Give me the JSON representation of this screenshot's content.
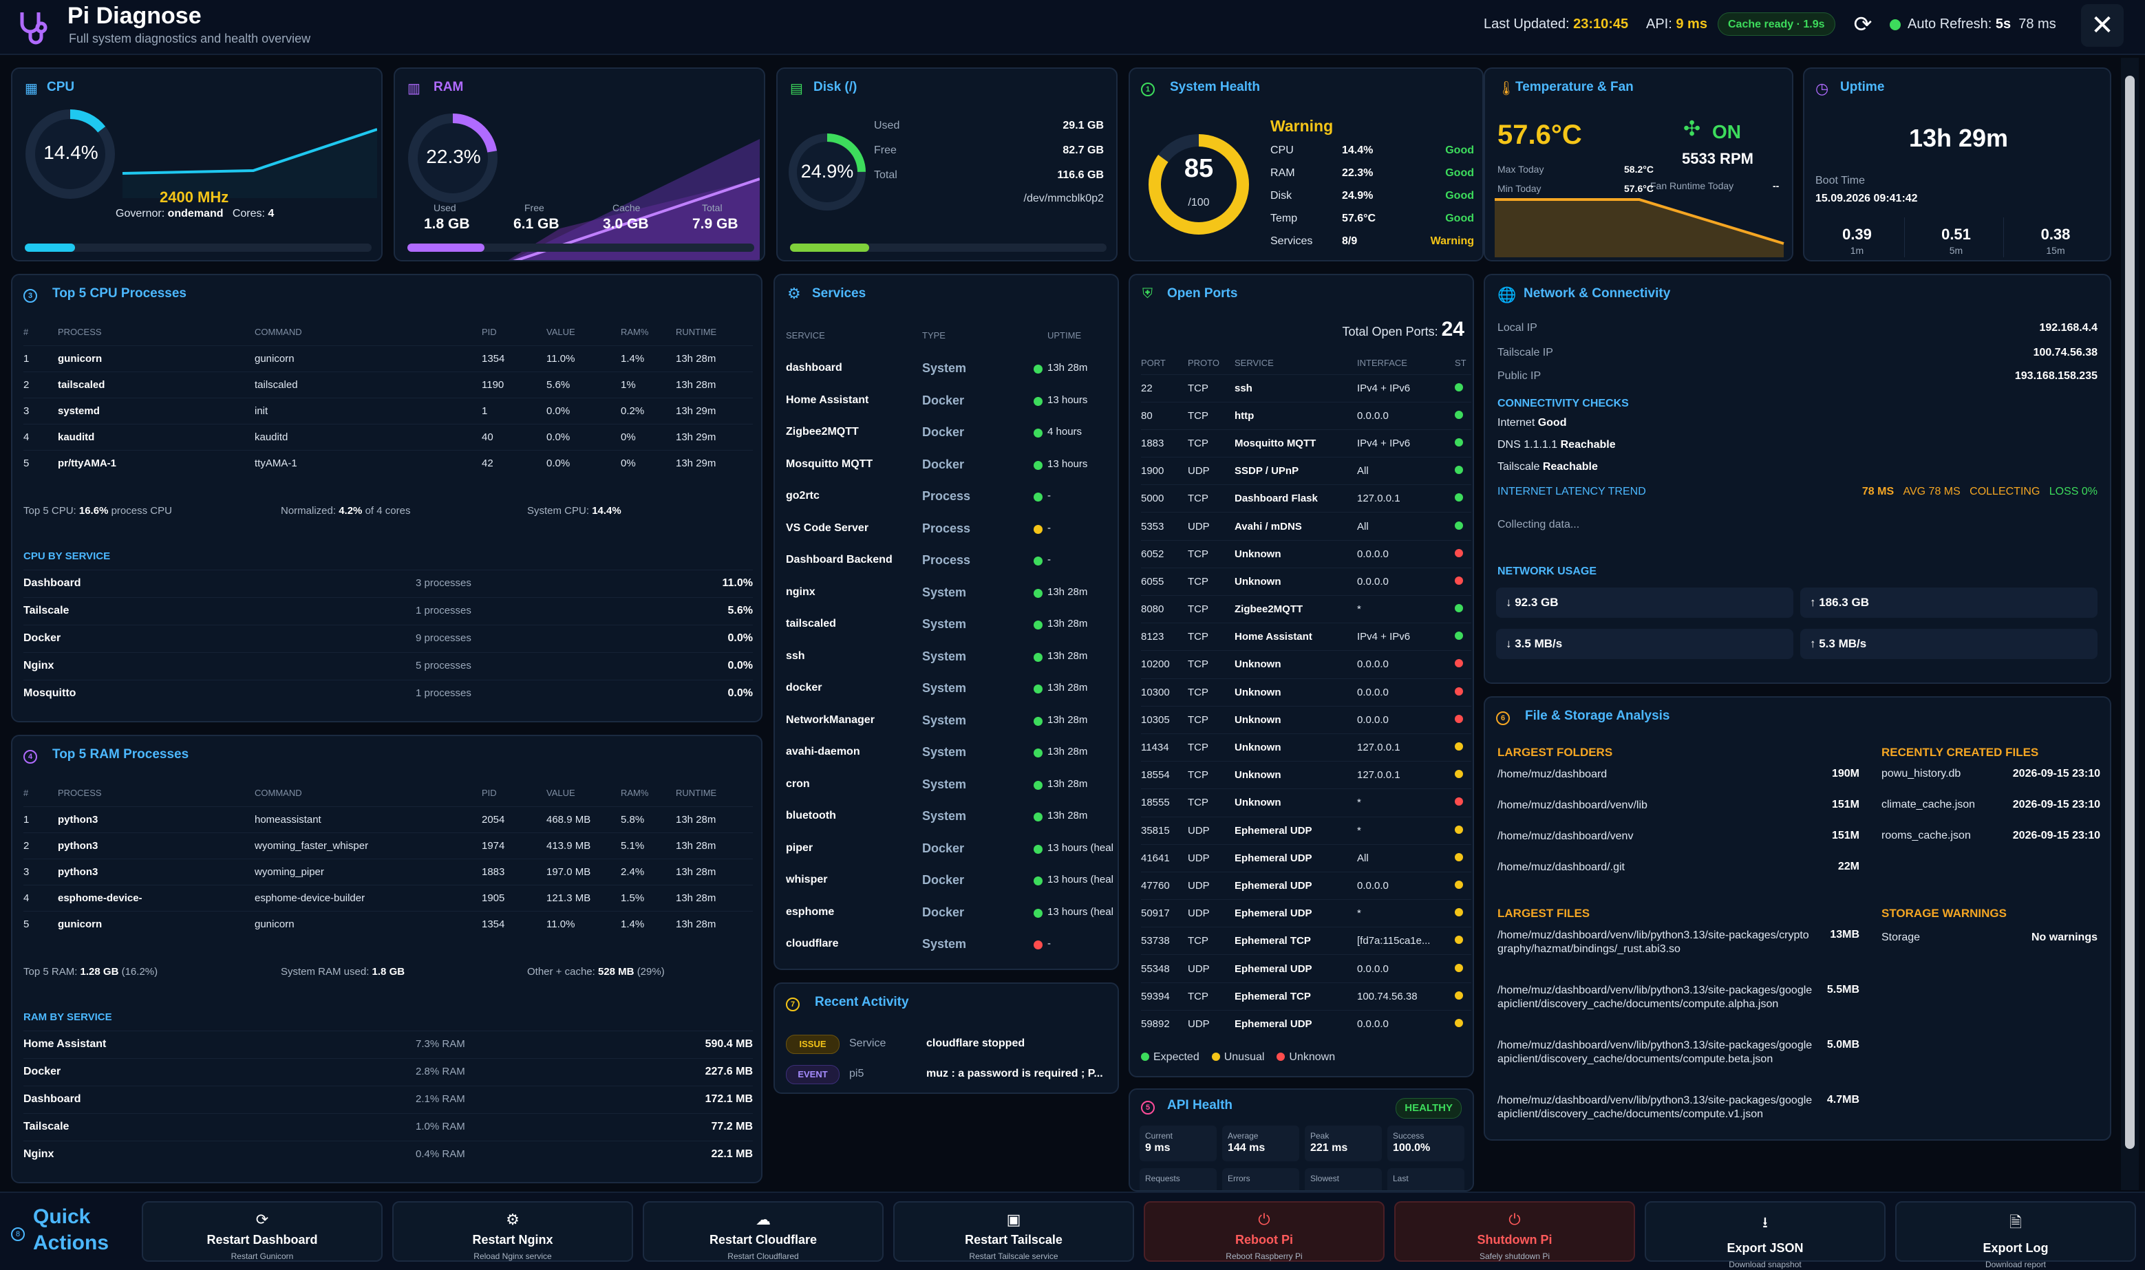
{
  "header": {
    "title": "Pi Diagnose",
    "subtitle": "Full system diagnostics and health overview",
    "last_updated_label": "Last Updated:",
    "last_updated": "23:10:45",
    "api_label": "API:",
    "api": "9 ms",
    "cache": "Cache ready · 1.9s",
    "auto_label": "Auto Refresh:",
    "auto_interval": "5s",
    "auto_ms": "78 ms"
  },
  "cpu": {
    "title": "CPU",
    "percent": "14.4%",
    "freq": "2400 MHz",
    "governor_label": "Governor:",
    "governor": "ondemand",
    "cores_label": "Cores:",
    "cores": "4",
    "usage": 0.144
  },
  "ram": {
    "title": "RAM",
    "percent": "22.3%",
    "used_label": "Used",
    "used": "1.8 GB",
    "free_label": "Free",
    "free": "6.1 GB",
    "cache_label": "Cache",
    "cache": "3.0 GB",
    "total_label": "Total",
    "total": "7.9 GB",
    "usage": 0.223
  },
  "disk": {
    "title": "Disk (/)",
    "percent": "24.9%",
    "used_label": "Used",
    "used": "29.1 GB",
    "free_label": "Free",
    "free": "82.7 GB",
    "total_label": "Total",
    "total": "116.6 GB",
    "device": "/dev/mmcblk0p2",
    "usage": 0.249
  },
  "health": {
    "title": "System Health",
    "score": "85",
    "of": "/100",
    "status": "Warning",
    "score_value": 85,
    "rows": [
      {
        "k": "CPU",
        "v": "14.4%",
        "s": "Good"
      },
      {
        "k": "RAM",
        "v": "22.3%",
        "s": "Good"
      },
      {
        "k": "Disk",
        "v": "24.9%",
        "s": "Good"
      },
      {
        "k": "Temp",
        "v": "57.6°C",
        "s": "Good"
      },
      {
        "k": "Services",
        "v": "8/9",
        "s": "Warning"
      }
    ]
  },
  "temp": {
    "title": "Temperature & Fan",
    "value": "57.6°C",
    "fan_state": "ON",
    "rpm": "5533 RPM",
    "max_label": "Max Today",
    "max": "58.2°C",
    "min_label": "Min Today",
    "min": "57.6°C",
    "runtime_label": "Fan Runtime Today",
    "runtime": "--"
  },
  "uptime": {
    "title": "Uptime",
    "value": "13h 29m",
    "boot_label": "Boot Time",
    "boot": "15.09.2026 09:41:42",
    "loads": [
      {
        "v": "0.39",
        "l": "1m"
      },
      {
        "v": "0.51",
        "l": "5m"
      },
      {
        "v": "0.38",
        "l": "15m"
      }
    ]
  },
  "cpu_proc": {
    "num": "3",
    "title": "Top 5 CPU Processes",
    "headers": [
      "#",
      "PROCESS",
      "COMMAND",
      "PID",
      "VALUE",
      "RAM%",
      "RUNTIME"
    ],
    "rows": [
      [
        "1",
        "gunicorn",
        "gunicorn",
        "1354",
        "11.0%",
        "1.4%",
        "13h 28m"
      ],
      [
        "2",
        "tailscaled",
        "tailscaled",
        "1190",
        "5.6%",
        "1%",
        "13h 28m"
      ],
      [
        "3",
        "systemd",
        "init",
        "1",
        "0.0%",
        "0.2%",
        "13h 29m"
      ],
      [
        "4",
        "kauditd",
        "kauditd",
        "40",
        "0.0%",
        "0%",
        "13h 29m"
      ],
      [
        "5",
        "pr/ttyAMA-1",
        "ttyAMA-1",
        "42",
        "0.0%",
        "0%",
        "13h 29m"
      ]
    ],
    "sum1_label": "Top 5 CPU:",
    "sum1": "16.6%",
    "sum1_suffix": "process CPU",
    "sum2_label": "Normalized:",
    "sum2": "4.2%",
    "sum2_suffix": "of 4 cores",
    "sum3_label": "System CPU:",
    "sum3": "14.4%",
    "by_title": "CPU BY SERVICE",
    "by": [
      [
        "Dashboard",
        "3 processes",
        "11.0%"
      ],
      [
        "Tailscale",
        "1 processes",
        "5.6%"
      ],
      [
        "Docker",
        "9 processes",
        "0.0%"
      ],
      [
        "Nginx",
        "5 processes",
        "0.0%"
      ],
      [
        "Mosquitto",
        "1 processes",
        "0.0%"
      ]
    ]
  },
  "ram_proc": {
    "num": "4",
    "title": "Top 5 RAM Processes",
    "headers": [
      "#",
      "PROCESS",
      "COMMAND",
      "PID",
      "VALUE",
      "RAM%",
      "RUNTIME"
    ],
    "rows": [
      [
        "1",
        "python3",
        "homeassistant",
        "2054",
        "468.9 MB",
        "5.8%",
        "13h 28m"
      ],
      [
        "2",
        "python3",
        "wyoming_faster_whisper",
        "1974",
        "413.9 MB",
        "5.1%",
        "13h 28m"
      ],
      [
        "3",
        "python3",
        "wyoming_piper",
        "1883",
        "197.0 MB",
        "2.4%",
        "13h 28m"
      ],
      [
        "4",
        "esphome-device-",
        "esphome-device-builder",
        "1905",
        "121.3 MB",
        "1.5%",
        "13h 28m"
      ],
      [
        "5",
        "gunicorn",
        "gunicorn",
        "1354",
        "11.0%",
        "1.4%",
        "13h 28m"
      ]
    ],
    "sum1_label": "Top 5 RAM:",
    "sum1": "1.28 GB",
    "sum1_suffix": "(16.2%)",
    "sum2_label": "System RAM used:",
    "sum2": "1.8 GB",
    "sum3_label": "Other + cache:",
    "sum3": "528 MB",
    "sum3_suffix": "(29%)",
    "by_title": "RAM BY SERVICE",
    "by": [
      [
        "Home Assistant",
        "7.3% RAM",
        "590.4 MB"
      ],
      [
        "Docker",
        "2.8% RAM",
        "227.6 MB"
      ],
      [
        "Dashboard",
        "2.1% RAM",
        "172.1 MB"
      ],
      [
        "Tailscale",
        "1.0% RAM",
        "77.2 MB"
      ],
      [
        "Nginx",
        "0.4% RAM",
        "22.1 MB"
      ]
    ]
  },
  "services": {
    "title": "Services",
    "headers": [
      "SERVICE",
      "TYPE",
      "UPTIME"
    ],
    "rows": [
      [
        "dashboard",
        "System",
        "green",
        "13h 28m"
      ],
      [
        "Home Assistant",
        "Docker",
        "green",
        "13 hours"
      ],
      [
        "Zigbee2MQTT",
        "Docker",
        "green",
        "4 hours"
      ],
      [
        "Mosquitto MQTT",
        "Docker",
        "green",
        "13 hours"
      ],
      [
        "go2rtc",
        "Process",
        "green",
        "-"
      ],
      [
        "VS Code Server",
        "Process",
        "yellow",
        "-"
      ],
      [
        "Dashboard Backend",
        "Process",
        "green",
        "-"
      ],
      [
        "nginx",
        "System",
        "green",
        "13h 28m"
      ],
      [
        "tailscaled",
        "System",
        "green",
        "13h 28m"
      ],
      [
        "ssh",
        "System",
        "green",
        "13h 28m"
      ],
      [
        "docker",
        "System",
        "green",
        "13h 28m"
      ],
      [
        "NetworkManager",
        "System",
        "green",
        "13h 28m"
      ],
      [
        "avahi-daemon",
        "System",
        "green",
        "13h 28m"
      ],
      [
        "cron",
        "System",
        "green",
        "13h 28m"
      ],
      [
        "bluetooth",
        "System",
        "green",
        "13h 28m"
      ],
      [
        "piper",
        "Docker",
        "green",
        "13 hours (heal"
      ],
      [
        "whisper",
        "Docker",
        "green",
        "13 hours (heal"
      ],
      [
        "esphome",
        "Docker",
        "green",
        "13 hours (heal"
      ],
      [
        "cloudflare",
        "System",
        "red",
        "-"
      ]
    ]
  },
  "activity": {
    "num": "7",
    "title": "Recent Activity",
    "rows": [
      {
        "tag": "ISSUE",
        "src": "Service",
        "msg": "cloudflare stopped"
      },
      {
        "tag": "EVENT",
        "src": "pi5",
        "msg": "muz : a password is required ; P..."
      }
    ]
  },
  "ports": {
    "title": "Open Ports",
    "total_label": "Total Open Ports:",
    "total": "24",
    "headers": [
      "PORT",
      "PROTO",
      "SERVICE",
      "INTERFACE",
      "ST"
    ],
    "rows": [
      [
        "22",
        "TCP",
        "ssh",
        "IPv4 + IPv6",
        "green"
      ],
      [
        "80",
        "TCP",
        "http",
        "0.0.0.0",
        "green"
      ],
      [
        "1883",
        "TCP",
        "Mosquitto MQTT",
        "IPv4 + IPv6",
        "green"
      ],
      [
        "1900",
        "UDP",
        "SSDP / UPnP",
        "All",
        "green"
      ],
      [
        "5000",
        "TCP",
        "Dashboard Flask",
        "127.0.0.1",
        "green"
      ],
      [
        "5353",
        "UDP",
        "Avahi / mDNS",
        "All",
        "green"
      ],
      [
        "6052",
        "TCP",
        "Unknown",
        "0.0.0.0",
        "red"
      ],
      [
        "6055",
        "TCP",
        "Unknown",
        "0.0.0.0",
        "red"
      ],
      [
        "8080",
        "TCP",
        "Zigbee2MQTT",
        "*",
        "green"
      ],
      [
        "8123",
        "TCP",
        "Home Assistant",
        "IPv4 + IPv6",
        "green"
      ],
      [
        "10200",
        "TCP",
        "Unknown",
        "0.0.0.0",
        "red"
      ],
      [
        "10300",
        "TCP",
        "Unknown",
        "0.0.0.0",
        "red"
      ],
      [
        "10305",
        "TCP",
        "Unknown",
        "0.0.0.0",
        "red"
      ],
      [
        "11434",
        "TCP",
        "Unknown",
        "127.0.0.1",
        "yellow"
      ],
      [
        "18554",
        "TCP",
        "Unknown",
        "127.0.0.1",
        "yellow"
      ],
      [
        "18555",
        "TCP",
        "Unknown",
        "*",
        "red"
      ],
      [
        "35815",
        "UDP",
        "Ephemeral UDP",
        "*",
        "yellow"
      ],
      [
        "41641",
        "UDP",
        "Ephemeral UDP",
        "All",
        "yellow"
      ],
      [
        "47760",
        "UDP",
        "Ephemeral UDP",
        "0.0.0.0",
        "yellow"
      ],
      [
        "50917",
        "UDP",
        "Ephemeral UDP",
        "*",
        "yellow"
      ],
      [
        "53738",
        "TCP",
        "Ephemeral TCP",
        "[fd7a:115ca1e...",
        "yellow"
      ],
      [
        "55348",
        "UDP",
        "Ephemeral UDP",
        "0.0.0.0",
        "yellow"
      ],
      [
        "59394",
        "TCP",
        "Ephemeral TCP",
        "100.74.56.38",
        "yellow"
      ],
      [
        "59892",
        "UDP",
        "Ephemeral UDP",
        "0.0.0.0",
        "yellow"
      ]
    ],
    "legend": [
      "Expected",
      "Unusual",
      "Unknown"
    ]
  },
  "api": {
    "num": "5",
    "title": "API Health",
    "badge": "HEALTHY",
    "stats": [
      {
        "l": "Current",
        "v": "9 ms"
      },
      {
        "l": "Average",
        "v": "144 ms"
      },
      {
        "l": "Peak",
        "v": "221 ms"
      },
      {
        "l": "Success",
        "v": "100.0%"
      }
    ],
    "stats2": [
      "Requests",
      "Errors",
      "Slowest",
      "Last"
    ]
  },
  "network": {
    "title": "Network & Connectivity",
    "local_label": "Local IP",
    "local": "192.168.4.4",
    "tail_label": "Tailscale IP",
    "tail": "100.74.56.38",
    "public_label": "Public IP",
    "public": "193.168.158.235",
    "checks_title": "CONNECTIVITY CHECKS",
    "checks": [
      {
        "k": "Internet",
        "v": "Good"
      },
      {
        "k": "DNS 1.1.1.1",
        "v": "Reachable"
      },
      {
        "k": "Tailscale",
        "v": "Reachable"
      }
    ],
    "latency_title": "INTERNET LATENCY TREND",
    "lat_now": "78 MS",
    "lat_avg": "AVG 78 MS",
    "lat_state": "COLLECTING",
    "lat_loss": "LOSS 0%",
    "collecting": "Collecting data...",
    "usage_title": "NETWORK USAGE",
    "down_total": "↓ 92.3 GB",
    "up_total": "↑ 186.3 GB",
    "down_rate": "↓ 3.5 MB/s",
    "up_rate": "↑ 5.3 MB/s"
  },
  "files": {
    "num": "6",
    "title": "File & Storage Analysis",
    "folders_title": "LARGEST FOLDERS",
    "folders": [
      [
        "/home/muz/dashboard",
        "190M"
      ],
      [
        "/home/muz/dashboard/venv/lib",
        "151M"
      ],
      [
        "/home/muz/dashboard/venv",
        "151M"
      ],
      [
        "/home/muz/dashboard/.git",
        "22M"
      ]
    ],
    "recent_title": "RECENTLY CREATED FILES",
    "recent": [
      [
        "powu_history.db",
        "2026-09-15 23:10"
      ],
      [
        "climate_cache.json",
        "2026-09-15 23:10"
      ],
      [
        "rooms_cache.json",
        "2026-09-15 23:10"
      ]
    ],
    "files_title": "LARGEST FILES",
    "files": [
      [
        "/home/muz/dashboard/venv/lib/python3.13/site-packages/cryptography/hazmat/bindings/_rust.abi3.so",
        "13MB"
      ],
      [
        "/home/muz/dashboard/venv/lib/python3.13/site-packages/googleapiclient/discovery_cache/documents/compute.alpha.json",
        "5.5MB"
      ],
      [
        "/home/muz/dashboard/venv/lib/python3.13/site-packages/googleapiclient/discovery_cache/documents/compute.beta.json",
        "5.0MB"
      ],
      [
        "/home/muz/dashboard/venv/lib/python3.13/site-packages/googleapiclient/discovery_cache/documents/compute.v1.json",
        "4.7MB"
      ]
    ],
    "warn_title": "STORAGE WARNINGS",
    "warn_k": "Storage",
    "warn_v": "No warnings"
  },
  "quick": {
    "title1": "Quick",
    "title2": "Actions",
    "actions": [
      {
        "i": "⟳",
        "t": "Restart Dashboard",
        "s": "Restart Gunicorn",
        "d": false
      },
      {
        "i": "⚙",
        "t": "Restart Nginx",
        "s": "Reload Nginx service",
        "d": false
      },
      {
        "i": "☁",
        "t": "Restart Cloudflare",
        "s": "Restart Cloudflared",
        "d": false
      },
      {
        "i": "▣",
        "t": "Restart Tailscale",
        "s": "Restart Tailscale service",
        "d": false
      },
      {
        "i": "⏻",
        "t": "Reboot Pi",
        "s": "Reboot Raspberry Pi",
        "d": true
      },
      {
        "i": "⏻",
        "t": "Shutdown Pi",
        "s": "Safely shutdown Pi",
        "d": true
      },
      {
        "i": "⭳",
        "t": "Export JSON",
        "s": "Download snapshot",
        "d": false
      },
      {
        "i": "🗎",
        "t": "Export Log",
        "s": "Download report",
        "d": false
      }
    ]
  },
  "colors": {
    "accent": "#4cb8ff",
    "good": "#3ddc5c",
    "warn": "#f5c518",
    "bad": "#ff4d4d",
    "ram": "#b06bff",
    "temp": "#f5c518"
  }
}
